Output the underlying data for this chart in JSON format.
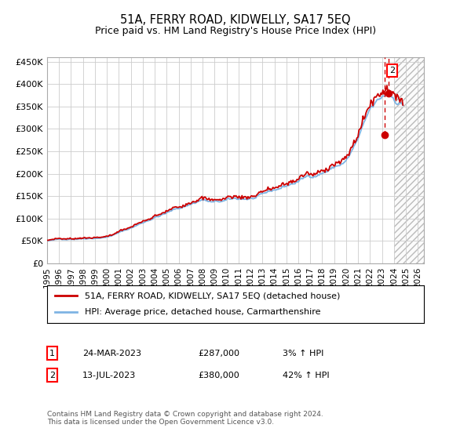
{
  "title": "51A, FERRY ROAD, KIDWELLY, SA17 5EQ",
  "subtitle": "Price paid vs. HM Land Registry's House Price Index (HPI)",
  "ylabel_ticks": [
    "£0",
    "£50K",
    "£100K",
    "£150K",
    "£200K",
    "£250K",
    "£300K",
    "£350K",
    "£400K",
    "£450K"
  ],
  "ytick_values": [
    0,
    50000,
    100000,
    150000,
    200000,
    250000,
    300000,
    350000,
    400000,
    450000
  ],
  "ylim": [
    0,
    460000
  ],
  "xlim_start": 1995.0,
  "xlim_end": 2026.5,
  "hpi_color": "#7eb4e3",
  "price_color": "#cc0000",
  "bg_color": "#ffffff",
  "grid_color": "#cccccc",
  "sale1_date_x": 2023.22,
  "sale1_price": 287000,
  "sale2_date_x": 2023.54,
  "sale2_price": 380000,
  "legend1": "51A, FERRY ROAD, KIDWELLY, SA17 5EQ (detached house)",
  "legend2": "HPI: Average price, detached house, Carmarthenshire",
  "table_row1_num": "1",
  "table_row1_date": "24-MAR-2023",
  "table_row1_price": "£287,000",
  "table_row1_hpi": "3% ↑ HPI",
  "table_row2_num": "2",
  "table_row2_date": "13-JUL-2023",
  "table_row2_price": "£380,000",
  "table_row2_hpi": "42% ↑ HPI",
  "footer": "Contains HM Land Registry data © Crown copyright and database right 2024.\nThis data is licensed under the Open Government Licence v3.0.",
  "xticks": [
    1995,
    1996,
    1997,
    1998,
    1999,
    2000,
    2001,
    2002,
    2003,
    2004,
    2005,
    2006,
    2007,
    2008,
    2009,
    2010,
    2011,
    2012,
    2013,
    2014,
    2015,
    2016,
    2017,
    2018,
    2019,
    2020,
    2021,
    2022,
    2023,
    2024,
    2025,
    2026
  ]
}
